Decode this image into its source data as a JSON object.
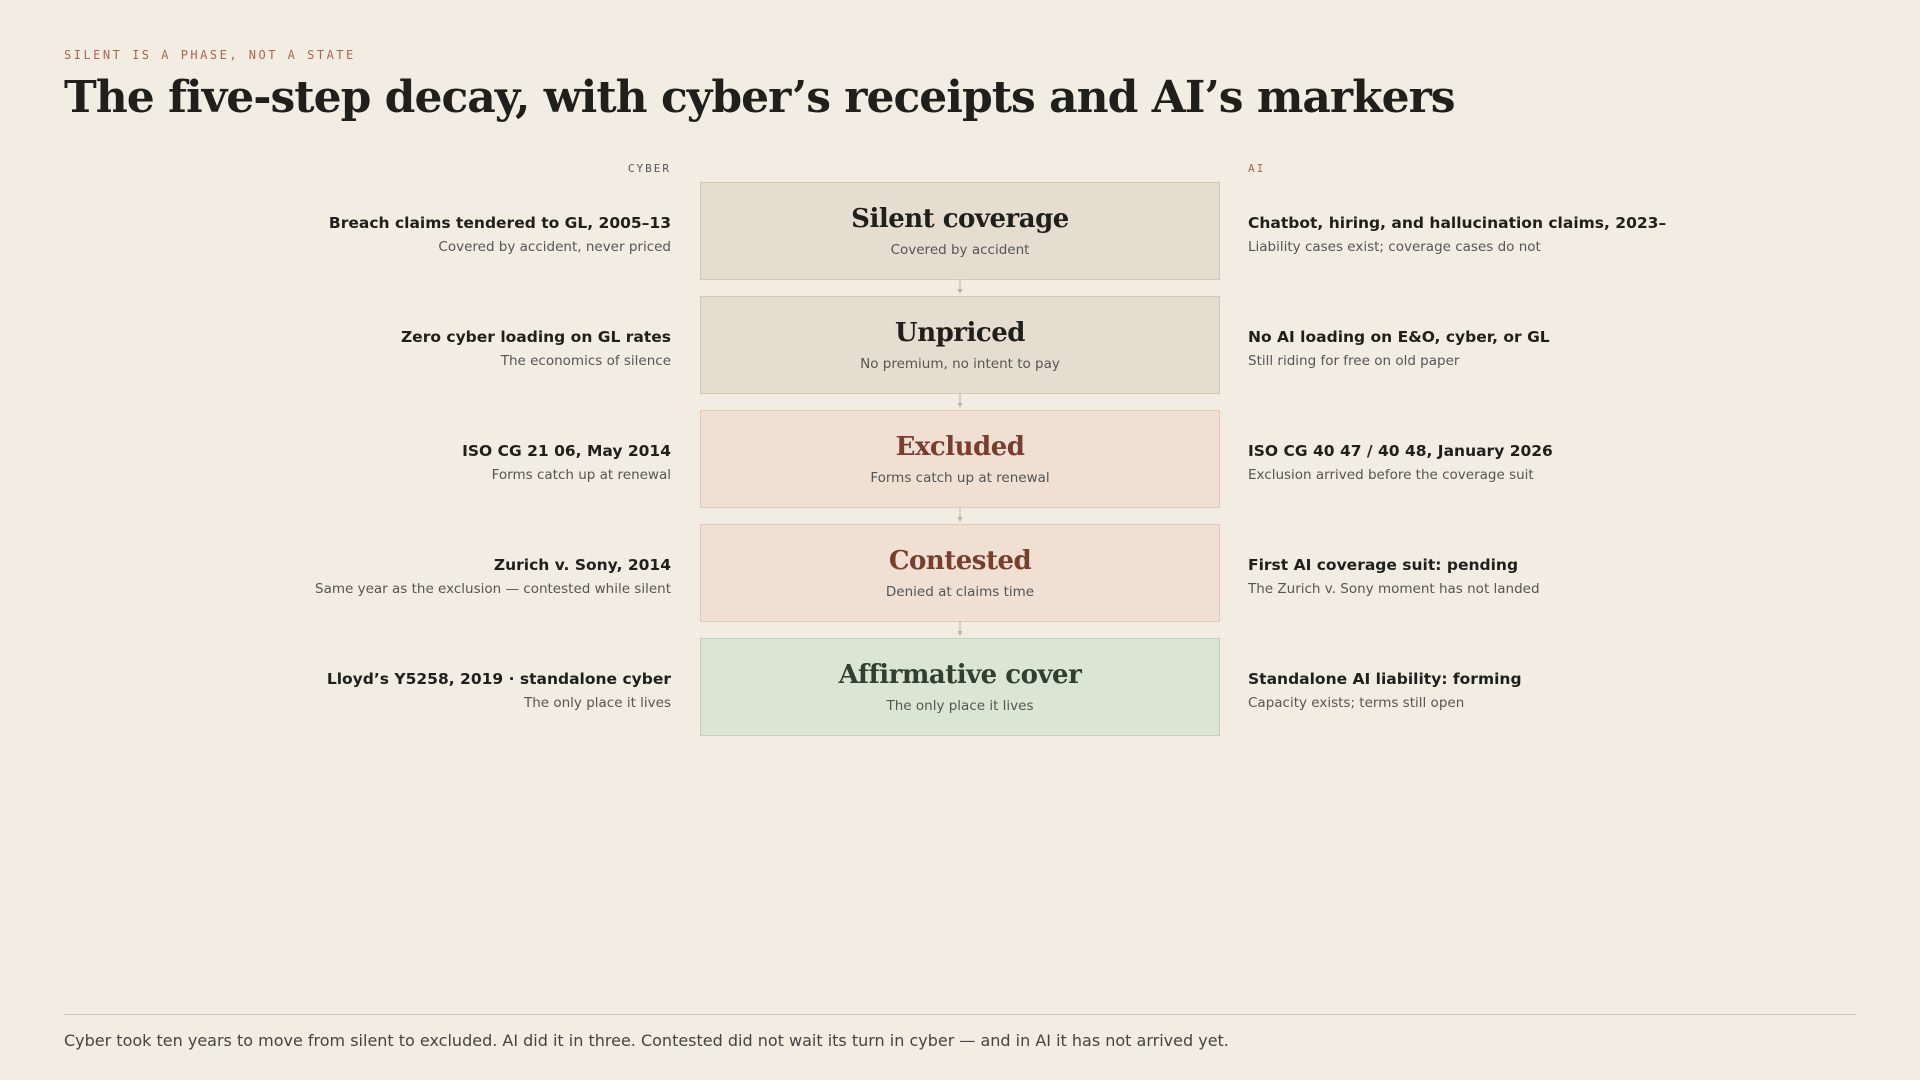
{
  "eyebrow": "SILENT IS A PHASE, NOT A STATE",
  "title": "The five-step decay, with cyber’s receipts and AI’s markers",
  "columns": {
    "left": "CYBER",
    "right": "AI"
  },
  "steps": [
    {
      "title": "Silent coverage",
      "subtitle": "Covered by accident",
      "cyber": {
        "title": "Breach claims tendered to GL, 2005–13",
        "note": "Covered by accident, never priced"
      },
      "ai": {
        "title": "Chatbot, hiring, and hallucination claims, 2023–",
        "note": "Liability cases exist; coverage cases do not"
      }
    },
    {
      "title": "Unpriced",
      "subtitle": "No premium, no intent to pay",
      "cyber": {
        "title": "Zero cyber loading on GL rates",
        "note": "The economics of silence"
      },
      "ai": {
        "title": "No AI loading on E&O, cyber, or GL",
        "note": "Still riding for free on old paper"
      }
    },
    {
      "title": "Excluded",
      "subtitle": "Forms catch up at renewal",
      "cyber": {
        "title": "ISO CG 21 06, May 2014",
        "note": "Forms catch up at renewal"
      },
      "ai": {
        "title": "ISO CG 40 47 / 40 48, January 2026",
        "note": "Exclusion arrived before the coverage suit"
      }
    },
    {
      "title": "Contested",
      "subtitle": "Denied at claims time",
      "cyber": {
        "title": "Zurich v. Sony, 2014",
        "note": "Same year as the exclusion — contested while silent"
      },
      "ai": {
        "title": "First AI coverage suit: pending",
        "note": "The Zurich v. Sony moment has not landed"
      }
    },
    {
      "title": "Affirmative cover",
      "subtitle": "The only place it lives",
      "cyber": {
        "title": "Lloyd’s Y5258, 2019 · standalone cyber",
        "note": "The only place it lives"
      },
      "ai": {
        "title": "Standalone AI liability: forming",
        "note": "Capacity exists; terms still open"
      }
    }
  ],
  "footer": "Cyber took ten years to move from silent to excluded. AI did it in three. Contested did not wait its turn in cyber — and in AI it has not arrived yet."
}
